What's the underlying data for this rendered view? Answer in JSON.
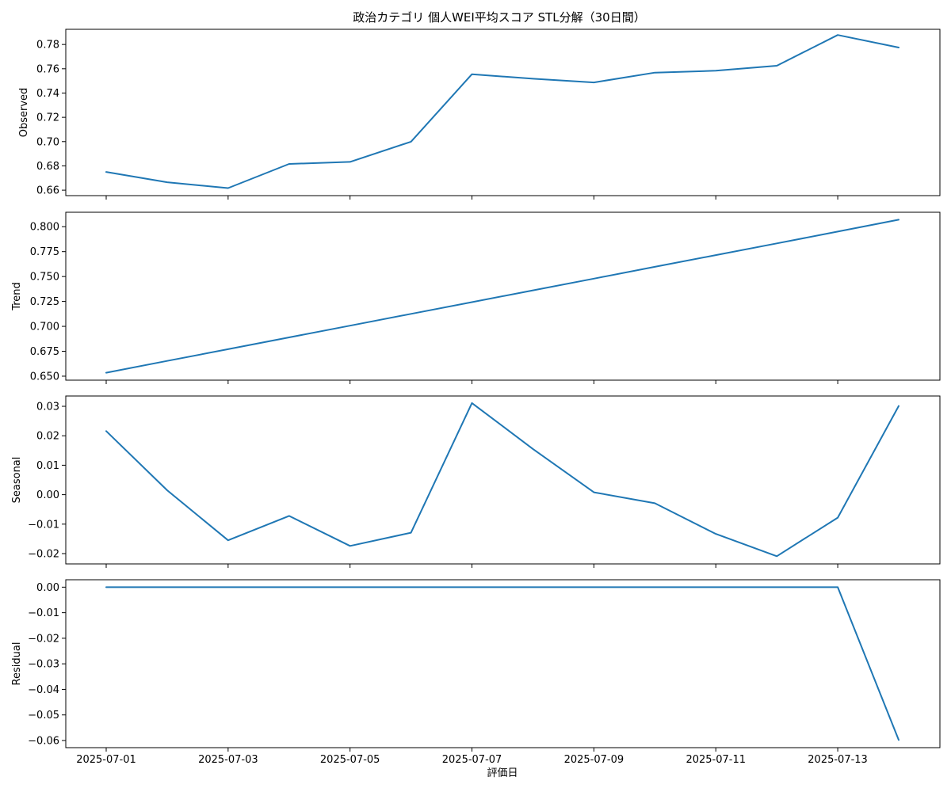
{
  "chart_data": {
    "type": "line",
    "title": "政治カテゴリ 個人WEI平均スコア STL分解（30日間）",
    "xlabel": "評価日",
    "x": [
      "2025-07-01",
      "2025-07-02",
      "2025-07-03",
      "2025-07-04",
      "2025-07-05",
      "2025-07-06",
      "2025-07-07",
      "2025-07-08",
      "2025-07-09",
      "2025-07-10",
      "2025-07-11",
      "2025-07-12",
      "2025-07-13",
      "2025-07-14"
    ],
    "xticks": [
      "2025-07-01",
      "2025-07-03",
      "2025-07-05",
      "2025-07-07",
      "2025-07-09",
      "2025-07-11",
      "2025-07-13"
    ],
    "grid": false,
    "color": "#1f77b4",
    "panels": [
      {
        "ylabel": "Observed",
        "ylim": [
          0.6555,
          0.7925
        ],
        "yticks": [
          0.66,
          0.68,
          0.7,
          0.72,
          0.74,
          0.76,
          0.78
        ],
        "ytick_labels": [
          "0.66",
          "0.68",
          "0.70",
          "0.72",
          "0.74",
          "0.76",
          "0.78"
        ],
        "values": [
          0.675,
          0.6665,
          0.6617,
          0.6816,
          0.6833,
          0.6999,
          0.7555,
          0.7518,
          0.7487,
          0.7568,
          0.7584,
          0.7625,
          0.7878,
          0.7775
        ]
      },
      {
        "ylabel": "Trend",
        "ylim": [
          0.646,
          0.8145
        ],
        "yticks": [
          0.65,
          0.675,
          0.7,
          0.725,
          0.75,
          0.775,
          0.8
        ],
        "ytick_labels": [
          "0.650",
          "0.675",
          "0.700",
          "0.725",
          "0.750",
          "0.775",
          "0.800"
        ],
        "values": [
          0.6535,
          0.6653,
          0.6771,
          0.6889,
          0.7007,
          0.7125,
          0.7243,
          0.7361,
          0.7479,
          0.7597,
          0.7715,
          0.7833,
          0.7951,
          0.807
        ]
      },
      {
        "ylabel": "Seasonal",
        "ylim": [
          -0.0235,
          0.0335
        ],
        "yticks": [
          -0.02,
          -0.01,
          0.0,
          0.01,
          0.02,
          0.03
        ],
        "ytick_labels": [
          "−0.02",
          "−0.01",
          "0.00",
          "0.01",
          "0.02",
          "0.03"
        ],
        "values": [
          0.0216,
          0.0015,
          -0.0155,
          -0.0072,
          -0.0174,
          -0.0129,
          0.0311,
          0.0155,
          0.0008,
          -0.0029,
          -0.0133,
          -0.0209,
          -0.0078,
          0.0301
        ]
      },
      {
        "ylabel": "Residual",
        "ylim": [
          -0.0628,
          0.0029
        ],
        "yticks": [
          -0.06,
          -0.05,
          -0.04,
          -0.03,
          -0.02,
          -0.01,
          0.0
        ],
        "ytick_labels": [
          "−0.06",
          "−0.05",
          "−0.04",
          "−0.03",
          "−0.02",
          "−0.01",
          "0.00"
        ],
        "values": [
          0,
          0,
          0,
          0,
          0,
          0,
          0,
          0,
          0,
          0,
          0,
          0,
          0,
          -0.0598
        ]
      }
    ]
  }
}
